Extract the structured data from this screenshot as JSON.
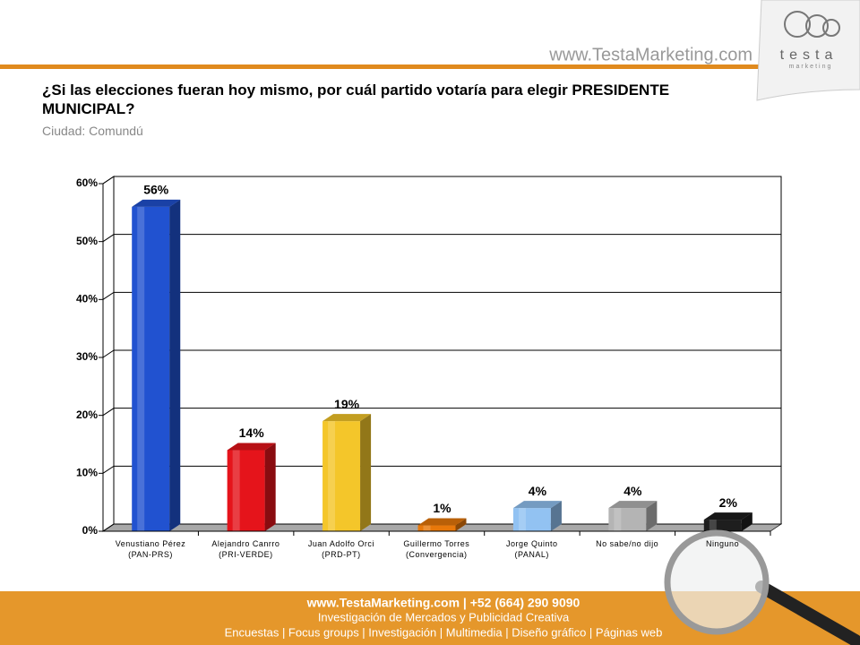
{
  "header": {
    "site": "www.TestaMarketing.com",
    "logo": "testa",
    "logo_sub": "marketing"
  },
  "chart_data": {
    "type": "bar3d",
    "title": "¿Si las elecciones fueran hoy mismo, por cuál partido votaría para elegir PRESIDENTE MUNICIPAL?",
    "subtitle": "Ciudad:  Comundú",
    "categories": [
      "Venustiano Pérez\n(PAN-PRS)",
      "Alejandro Canrro\n(PRI-VERDE)",
      "Juan Adolfo Orci\n(PRD-PT)",
      "Guillermo Torres\n(Convergencia)",
      "Jorge Quinto\n(PANAL)",
      "No sabe/no dijo",
      "Ninguno"
    ],
    "values": [
      56,
      14,
      19,
      1,
      4,
      4,
      2
    ],
    "value_labels": [
      "56%",
      "14%",
      "19%",
      "1%",
      "4%",
      "4%",
      "2%"
    ],
    "colors": [
      "#2152d0",
      "#e5141b",
      "#f4c62a",
      "#e8780a",
      "#92c2f2",
      "#b4b4b4",
      "#1e1e1e"
    ],
    "ylim": [
      0,
      60
    ],
    "yticks": [
      {
        "value": 0,
        "label": "0%"
      },
      {
        "value": 10,
        "label": "10%"
      },
      {
        "value": 20,
        "label": "20%"
      },
      {
        "value": 30,
        "label": "30%"
      },
      {
        "value": 40,
        "label": "40%"
      },
      {
        "value": 50,
        "label": "50%"
      },
      {
        "value": 60,
        "label": "60%"
      }
    ],
    "grid": true
  },
  "footer": {
    "line1": "www.TestaMarketing.com | +52 (664) 290 9090",
    "line2": "Investigación de Mercados y Publicidad Creativa",
    "line3": "Encuestas | Focus groups | Investigación | Multimedia | Diseño gráfico | Páginas web"
  }
}
